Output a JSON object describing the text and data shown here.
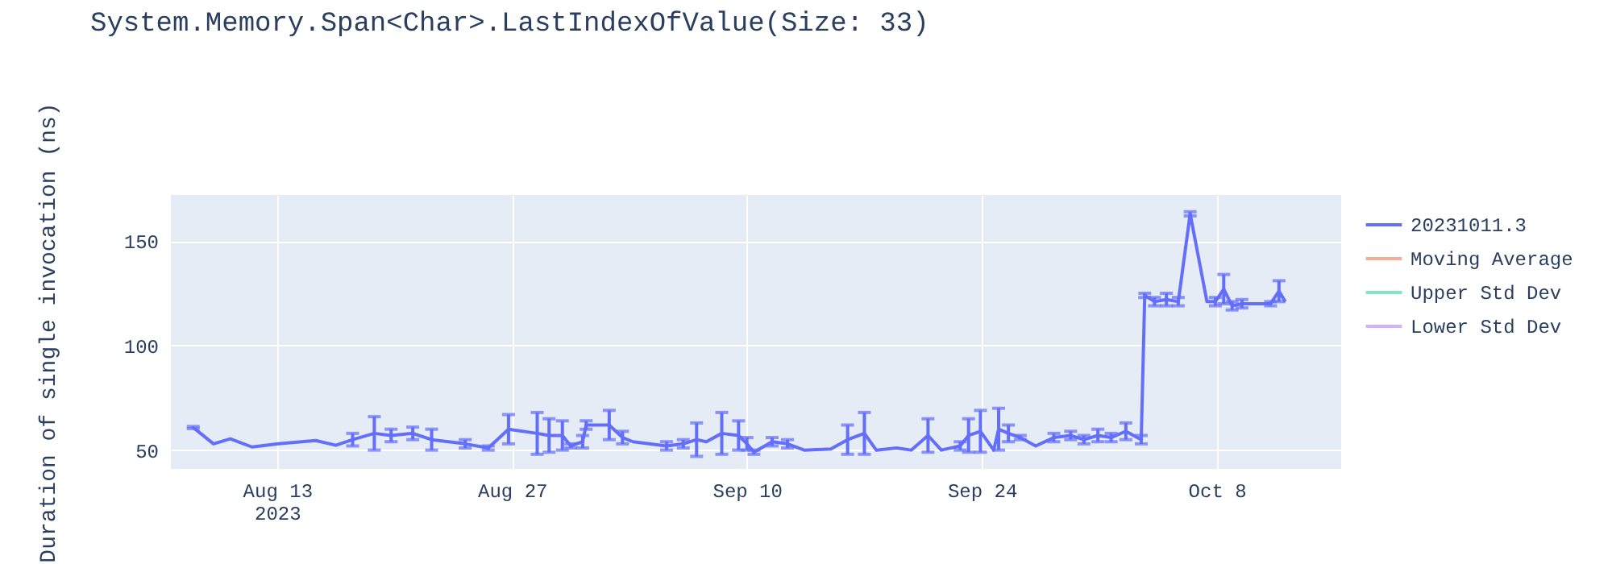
{
  "chart_data": {
    "type": "line",
    "title": "System.Memory.Span<Char>.LastIndexOfValue(Size: 33)",
    "ylabel": "Duration of single invocation (ns)",
    "x": [
      "2023-08-08T00:00",
      "2023-08-09T05:00",
      "2023-08-10T05:00",
      "2023-08-11T12:00",
      "2023-08-13T02:00",
      "2023-08-15T07:00",
      "2023-08-16T12:00",
      "2023-08-17T12:00",
      "2023-08-18T19:00",
      "2023-08-19T19:00",
      "2023-08-21T02:00",
      "2023-08-22T05:00",
      "2023-08-24T05:00",
      "2023-08-25T14:00",
      "2023-08-26T19:00",
      "2023-08-28T12:00",
      "2023-08-29T05:00",
      "2023-08-30T00:00",
      "2023-08-30T12:00",
      "2023-08-31T05:00",
      "2023-08-31T10:00",
      "2023-09-01T19:00",
      "2023-09-02T14:00",
      "2023-09-03T05:00",
      "2023-09-05T05:00",
      "2023-09-06T05:00",
      "2023-09-07T00:00",
      "2023-09-07T14:00",
      "2023-09-08T12:00",
      "2023-09-09T12:00",
      "2023-09-10T00:00",
      "2023-09-10T10:00",
      "2023-09-11T12:00",
      "2023-09-12T10:00",
      "2023-09-13T10:00",
      "2023-09-15T00:00",
      "2023-09-16T00:00",
      "2023-09-17T00:00",
      "2023-09-17T17:00",
      "2023-09-18T22:00",
      "2023-09-19T19:00",
      "2023-09-20T19:00",
      "2023-09-21T14:00",
      "2023-09-22T17:00",
      "2023-09-23T05:00",
      "2023-09-23T22:00",
      "2023-09-24T17:00",
      "2023-09-25T00:00",
      "2023-09-25T14:00",
      "2023-09-26T07:00",
      "2023-09-27T05:00",
      "2023-09-28T07:00",
      "2023-09-29T07:00",
      "2023-09-30T02:00",
      "2023-09-30T22:00",
      "2023-10-01T17:00",
      "2023-10-02T14:00",
      "2023-10-03T12:00",
      "2023-10-03T17:00",
      "2023-10-04T07:00",
      "2023-10-05T00:00",
      "2023-10-05T17:00",
      "2023-10-06T10:00",
      "2023-10-07T10:00",
      "2023-10-07T22:00",
      "2023-10-08T10:00",
      "2023-10-08T22:00",
      "2023-10-09T12:00",
      "2023-10-10T07:00",
      "2023-10-11T05:00",
      "2023-10-11T17:00",
      "2023-10-12T02:00"
    ],
    "series": [
      {
        "name": "20231011.3",
        "color": "#636efa",
        "values": [
          60.8,
          53,
          55.4,
          51.5,
          53,
          54.6,
          52.3,
          55,
          58,
          57,
          58,
          55,
          53,
          51,
          60,
          58,
          57,
          57,
          52,
          54,
          62,
          62,
          56,
          54,
          52,
          53,
          55,
          54,
          58,
          57,
          53,
          49,
          54,
          53,
          50,
          50.5,
          55,
          58,
          50,
          51,
          50,
          57,
          50,
          52,
          57,
          59,
          50,
          60,
          58,
          56,
          52,
          56,
          57,
          55,
          57,
          56,
          59,
          55,
          124,
          121,
          122,
          121,
          163,
          121,
          121,
          127,
          119,
          120,
          120,
          120,
          126,
          121
        ],
        "errors": [
          0.5,
          null,
          null,
          null,
          null,
          null,
          null,
          3,
          8,
          3,
          3,
          5,
          2,
          1,
          7,
          10,
          8,
          7,
          1,
          3,
          2,
          7,
          3,
          null,
          2,
          2,
          8,
          null,
          10,
          7,
          3,
          1,
          2,
          2,
          null,
          null,
          7,
          10,
          null,
          null,
          null,
          8,
          null,
          2,
          8,
          10,
          null,
          10,
          4,
          1,
          null,
          2,
          2,
          2,
          3,
          2,
          4,
          2,
          1,
          2,
          3,
          2,
          1,
          null,
          2,
          7,
          2,
          2,
          null,
          1,
          5,
          null
        ]
      },
      {
        "name": "Moving Average",
        "color": "#f7ad9d",
        "values": [
          null,
          null,
          null,
          null,
          null,
          null,
          null,
          null,
          null,
          null,
          null,
          null,
          null,
          null,
          null,
          null,
          null,
          null,
          null,
          null,
          null,
          null,
          null,
          null,
          null,
          null,
          null,
          null,
          null,
          null,
          null,
          null,
          null,
          null,
          null,
          null,
          null,
          null,
          null,
          null,
          null,
          null,
          null,
          null,
          null,
          null,
          null,
          null,
          null,
          null,
          null,
          null,
          null,
          null,
          null,
          null,
          null,
          null,
          null,
          null,
          null,
          null,
          null,
          null,
          null,
          null,
          null,
          null,
          null,
          null,
          null,
          null
        ]
      },
      {
        "name": "Upper Std Dev",
        "color": "#80e5cb",
        "values": [
          null,
          null,
          null,
          null,
          null,
          null,
          null,
          null,
          null,
          null,
          null,
          null,
          null,
          null,
          null,
          null,
          null,
          null,
          null,
          null,
          null,
          null,
          null,
          null,
          null,
          null,
          null,
          null,
          null,
          null,
          null,
          null,
          null,
          null,
          null,
          null,
          null,
          null,
          null,
          null,
          null,
          null,
          null,
          null,
          null,
          null,
          null,
          null,
          null,
          null,
          null,
          null,
          null,
          null,
          null,
          null,
          null,
          null,
          null,
          null,
          null,
          null,
          null,
          null,
          null,
          null,
          null,
          null,
          null,
          null,
          null,
          null
        ]
      },
      {
        "name": "Lower Std Dev",
        "color": "#d5b1fd",
        "values": [
          null,
          null,
          null,
          null,
          null,
          null,
          null,
          null,
          null,
          null,
          null,
          null,
          null,
          null,
          null,
          null,
          null,
          null,
          null,
          null,
          null,
          null,
          null,
          null,
          null,
          null,
          null,
          null,
          null,
          null,
          null,
          null,
          null,
          null,
          null,
          null,
          null,
          null,
          null,
          null,
          null,
          null,
          null,
          null,
          null,
          null,
          null,
          null,
          null,
          null,
          null,
          null,
          null,
          null,
          null,
          null,
          null,
          null,
          null,
          null,
          null,
          null,
          null,
          null,
          null,
          null,
          null,
          null,
          null,
          null,
          null,
          null
        ]
      }
    ],
    "xlim": [
      "2023-08-06T16:00",
      "2023-10-15T10:00"
    ],
    "xticks": [
      {
        "value": "2023-08-13",
        "label": "Aug 13\n2023"
      },
      {
        "value": "2023-08-27",
        "label": "Aug 27"
      },
      {
        "value": "2023-09-10",
        "label": "Sep 10"
      },
      {
        "value": "2023-09-24",
        "label": "Sep 24"
      },
      {
        "value": "2023-10-08",
        "label": "Oct 8"
      }
    ],
    "ylim": [
      41,
      172
    ],
    "yticks": [
      50,
      100,
      150
    ],
    "grid": true,
    "legend": "top right",
    "marker": "none",
    "line_style": "solid"
  }
}
